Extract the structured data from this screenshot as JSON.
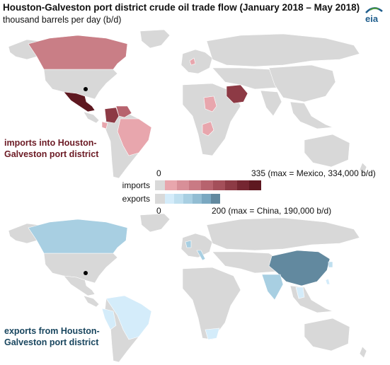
{
  "header": {
    "title": "Houston-Galveston port district crude oil trade flow (January 2018 – May 2018)",
    "subtitle": "thousand barrels per day (b/d)",
    "logo": "eia"
  },
  "legend": {
    "imports_label": "imports",
    "exports_label": "exports",
    "imports_min": "0",
    "imports_max": "335 (max = Mexico, 334,000 b/d)",
    "exports_min": "0",
    "exports_max": "200 (max = China, 190,000 b/d)",
    "imports_colors": [
      "#d9d9d9",
      "#e8a6ad",
      "#d88f98",
      "#c97a84",
      "#b7636e",
      "#a44f5a",
      "#8d3a45",
      "#752631",
      "#5e1820"
    ],
    "exports_colors": [
      "#d9d9d9",
      "#d4ecfa",
      "#bfdfef",
      "#a8cfe2",
      "#92bdd3",
      "#7aa8c1",
      "#62899f"
    ]
  },
  "maps": {
    "imports_caption": "imports into Houston-Galveston port district",
    "exports_caption": "exports from Houston-Galveston port district",
    "port_marker": "houston-port-marker",
    "base_color": "#d8d8d8"
  },
  "import_regions": {
    "canada": "#c97e86",
    "mexico": "#5e1820",
    "colombia": "#8d3a45",
    "venezuela": "#b7636e",
    "brazil": "#e8a6ad",
    "ecuador": "#e8a6ad",
    "chad": "#e8a6ad",
    "congo": "#e8a6ad",
    "saudi_arabia": "#8d3a45",
    "north_sea": "#e8a6ad"
  },
  "export_regions": {
    "canada": "#a8cfe2",
    "china": "#62899f",
    "india": "#a8cfe2",
    "brazil": "#d4ecfa",
    "peru": "#d4ecfa",
    "italy": "#a8cfe2",
    "uk": "#a8cfe2",
    "south_korea": "#bfdfef",
    "taiwan": "#d4ecfa",
    "south_africa": "#d4ecfa",
    "southeast_asia": "#d4ecfa"
  }
}
